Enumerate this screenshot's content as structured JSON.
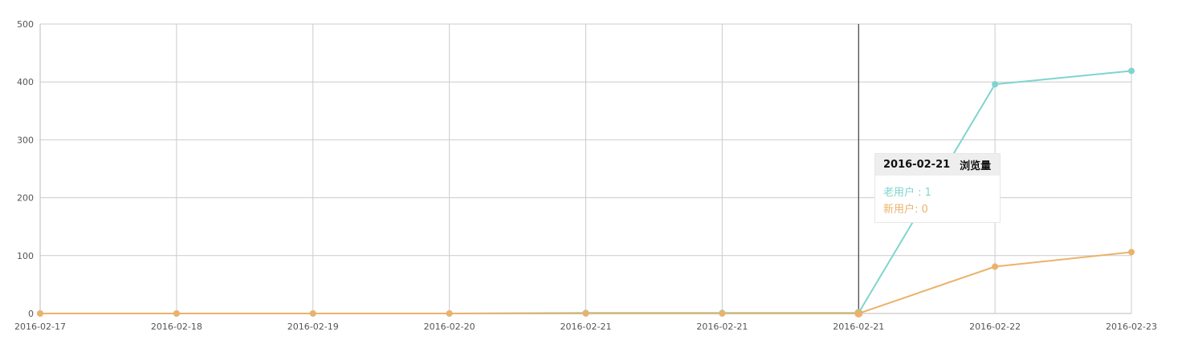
{
  "chart_data": {
    "type": "line",
    "categories": [
      "2016-02-17",
      "2016-02-18",
      "2016-02-19",
      "2016-02-20",
      "2016-02-21",
      "2016-02-21",
      "2016-02-21",
      "2016-02-22",
      "2016-02-23"
    ],
    "series": [
      {
        "name": "老用户",
        "color": "#7fd4cf",
        "values": [
          0,
          0,
          0,
          0,
          1,
          1,
          1,
          396,
          419
        ]
      },
      {
        "name": "新用户",
        "color": "#ebb26b",
        "values": [
          0,
          0,
          0,
          0,
          0,
          0,
          0,
          81,
          106
        ]
      }
    ],
    "ylim": [
      0,
      500
    ],
    "yticks": [
      0,
      100,
      200,
      300,
      400,
      500
    ],
    "grid": true,
    "hover_index": 6
  },
  "tooltip": {
    "date": "2016-02-21",
    "title": "浏览量",
    "rows": [
      {
        "label": "老用户 : 1",
        "color": "#7fd4cf"
      },
      {
        "label": "新用户: 0",
        "color": "#ebb26b"
      }
    ]
  }
}
